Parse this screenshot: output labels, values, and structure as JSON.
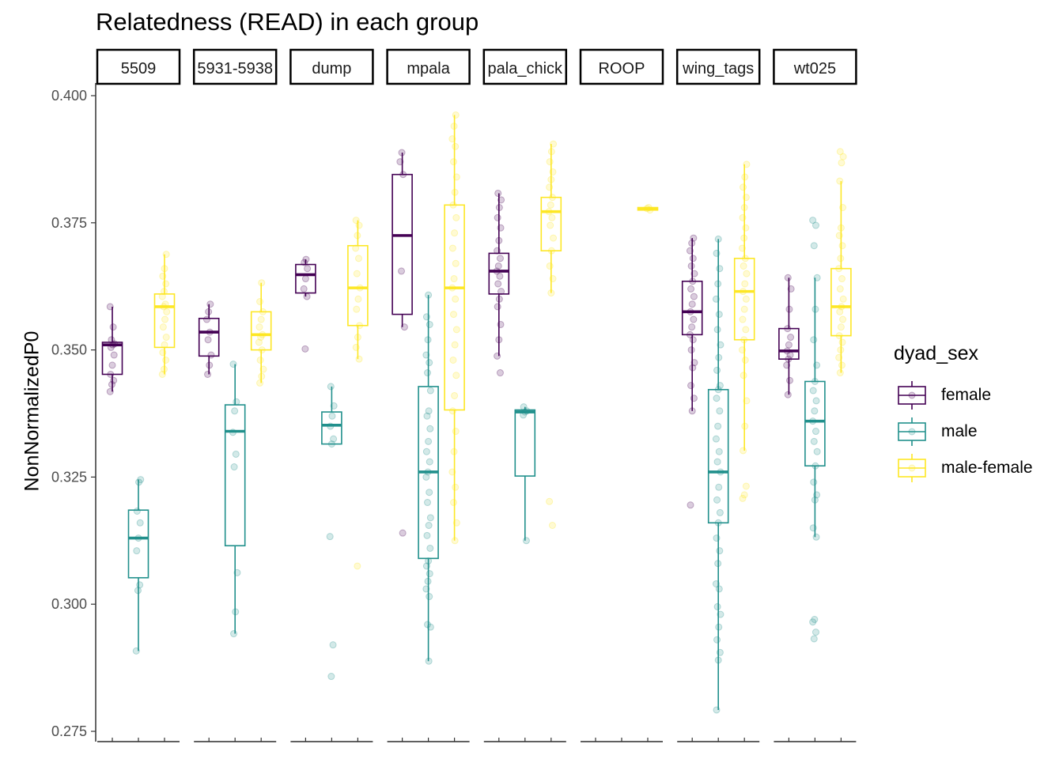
{
  "chart_data": {
    "type": "boxplot",
    "title": "Relatedness (READ) in each group",
    "xlabel": "",
    "ylabel": "NonNormalizedP0",
    "ylim": [
      0.275,
      0.4
    ],
    "yticks": [
      0.275,
      0.3,
      0.325,
      0.35,
      0.375,
      0.4
    ],
    "ytick_labels": [
      "0.275",
      "0.300",
      "0.325",
      "0.350",
      "0.375",
      "0.400"
    ],
    "legend": {
      "title": "dyad_sex",
      "position": "right",
      "entries": [
        {
          "label": "female",
          "color": "#440154"
        },
        {
          "label": "male",
          "color": "#21908C"
        },
        {
          "label": "male-female",
          "color": "#FDE725"
        }
      ]
    },
    "panels": [
      {
        "label": "5509",
        "boxes": [
          {
            "group": "female",
            "q1": 0.3452,
            "median": 0.351,
            "q3": 0.3515,
            "whisker_low": 0.3418,
            "whisker_high": 0.3585,
            "points": [
              0.3418,
              0.3432,
              0.344,
              0.3452,
              0.347,
              0.349,
              0.3505,
              0.351,
              0.3512,
              0.352,
              0.3545,
              0.3585
            ]
          },
          {
            "group": "male",
            "q1": 0.3052,
            "median": 0.313,
            "q3": 0.3185,
            "whisker_low": 0.2908,
            "whisker_high": 0.3245,
            "points": [
              0.2908,
              0.3027,
              0.3038,
              0.3105,
              0.313,
              0.316,
              0.3183,
              0.324,
              0.3245
            ]
          },
          {
            "group": "male-female",
            "q1": 0.3505,
            "median": 0.3585,
            "q3": 0.361,
            "whisker_low": 0.3452,
            "whisker_high": 0.3688,
            "points": [
              0.3452,
              0.3462,
              0.348,
              0.3495,
              0.351,
              0.3525,
              0.3545,
              0.356,
              0.3575,
              0.3585,
              0.359,
              0.3605,
              0.3615,
              0.363,
              0.3645,
              0.366,
              0.3688
            ]
          }
        ]
      },
      {
        "label": "5931-5938",
        "boxes": [
          {
            "group": "female",
            "q1": 0.3488,
            "median": 0.3535,
            "q3": 0.3562,
            "whisker_low": 0.3452,
            "whisker_high": 0.359,
            "points": [
              0.3452,
              0.347,
              0.349,
              0.352,
              0.3535,
              0.356,
              0.3575,
              0.359
            ]
          },
          {
            "group": "male",
            "q1": 0.3115,
            "median": 0.334,
            "q3": 0.3392,
            "whisker_low": 0.2942,
            "whisker_high": 0.3472,
            "points": [
              0.2942,
              0.2985,
              0.3062,
              0.327,
              0.3295,
              0.3338,
              0.338,
              0.3398,
              0.3472
            ]
          },
          {
            "group": "male-female",
            "q1": 0.35,
            "median": 0.353,
            "q3": 0.3575,
            "whisker_low": 0.3435,
            "whisker_high": 0.3632,
            "points": [
              0.3435,
              0.3448,
              0.3462,
              0.348,
              0.35,
              0.3515,
              0.3525,
              0.353,
              0.3545,
              0.356,
              0.3575,
              0.3595,
              0.3632
            ]
          }
        ]
      },
      {
        "label": "dump",
        "boxes": [
          {
            "group": "female",
            "q1": 0.3612,
            "median": 0.3648,
            "q3": 0.3668,
            "whisker_low": 0.3605,
            "whisker_high": 0.3678,
            "points": [
              0.3502,
              0.3605,
              0.362,
              0.364,
              0.366,
              0.3672,
              0.3678
            ]
          },
          {
            "group": "male",
            "q1": 0.3315,
            "median": 0.3352,
            "q3": 0.3378,
            "whisker_low": 0.3315,
            "whisker_high": 0.3428,
            "points": [
              0.2858,
              0.292,
              0.3133,
              0.3315,
              0.3325,
              0.335,
              0.337,
              0.339,
              0.3428
            ]
          },
          {
            "group": "male-female",
            "q1": 0.3548,
            "median": 0.3622,
            "q3": 0.3705,
            "whisker_low": 0.3482,
            "whisker_high": 0.3755,
            "points": [
              0.3075,
              0.3482,
              0.3505,
              0.3525,
              0.3548,
              0.358,
              0.36,
              0.3622,
              0.365,
              0.368,
              0.37,
              0.3725,
              0.3745,
              0.3755
            ]
          }
        ]
      },
      {
        "label": "mpala",
        "boxes": [
          {
            "group": "female",
            "q1": 0.357,
            "median": 0.3725,
            "q3": 0.3845,
            "whisker_low": 0.3545,
            "whisker_high": 0.3888,
            "points": [
              0.314,
              0.3545,
              0.3655,
              0.3845,
              0.387,
              0.3888
            ]
          },
          {
            "group": "male",
            "q1": 0.309,
            "median": 0.326,
            "q3": 0.3428,
            "whisker_low": 0.2888,
            "whisker_high": 0.3608,
            "points": [
              0.2888,
              0.2955,
              0.296,
              0.3015,
              0.303,
              0.3045,
              0.306,
              0.3075,
              0.3085,
              0.311,
              0.3135,
              0.3155,
              0.317,
              0.32,
              0.322,
              0.325,
              0.326,
              0.328,
              0.33,
              0.332,
              0.3345,
              0.337,
              0.338,
              0.342,
              0.3455,
              0.3475,
              0.349,
              0.352,
              0.355,
              0.3565,
              0.3608
            ]
          },
          {
            "group": "male-female",
            "q1": 0.3382,
            "median": 0.3622,
            "q3": 0.3785,
            "whisker_low": 0.3125,
            "whisker_high": 0.3962,
            "points": [
              0.3125,
              0.316,
              0.32,
              0.323,
              0.326,
              0.33,
              0.334,
              0.338,
              0.341,
              0.345,
              0.348,
              0.351,
              0.354,
              0.357,
              0.36,
              0.3622,
              0.364,
              0.367,
              0.37,
              0.373,
              0.376,
              0.3785,
              0.381,
              0.384,
              0.387,
              0.39,
              0.3915,
              0.394,
              0.3962
            ]
          }
        ]
      },
      {
        "label": "pala_chick",
        "boxes": [
          {
            "group": "female",
            "q1": 0.361,
            "median": 0.3655,
            "q3": 0.369,
            "whisker_low": 0.3488,
            "whisker_high": 0.3808,
            "points": [
              0.3455,
              0.3488,
              0.352,
              0.355,
              0.3585,
              0.36,
              0.3615,
              0.363,
              0.3645,
              0.3655,
              0.3665,
              0.368,
              0.3695,
              0.3715,
              0.374,
              0.376,
              0.378,
              0.3795,
              0.3808
            ]
          },
          {
            "group": "male",
            "q1": 0.3252,
            "median": 0.3378,
            "q3": 0.3382,
            "whisker_low": 0.3125,
            "whisker_high": 0.3388,
            "points": [
              0.3125,
              0.3372,
              0.3378,
              0.338,
              0.3388
            ]
          },
          {
            "group": "male-female",
            "q1": 0.3695,
            "median": 0.3772,
            "q3": 0.38,
            "whisker_low": 0.3612,
            "whisker_high": 0.3905,
            "points": [
              0.3155,
              0.3202,
              0.3612,
              0.364,
              0.3665,
              0.3695,
              0.372,
              0.3745,
              0.376,
              0.3772,
              0.3785,
              0.38,
              0.382,
              0.3835,
              0.385,
              0.387,
              0.389,
              0.3905
            ]
          }
        ]
      },
      {
        "label": "ROOP",
        "boxes": [
          {
            "group": "male-female",
            "q1": 0.3775,
            "median": 0.3778,
            "q3": 0.378,
            "whisker_low": 0.3775,
            "whisker_high": 0.378,
            "points": [
              0.3775,
              0.3778,
              0.378
            ]
          }
        ]
      },
      {
        "label": "wing_tags",
        "boxes": [
          {
            "group": "female",
            "q1": 0.353,
            "median": 0.3575,
            "q3": 0.3635,
            "whisker_low": 0.338,
            "whisker_high": 0.372,
            "points": [
              0.3195,
              0.338,
              0.3405,
              0.343,
              0.3465,
              0.3475,
              0.35,
              0.352,
              0.353,
              0.3545,
              0.356,
              0.3575,
              0.359,
              0.3605,
              0.362,
              0.3635,
              0.365,
              0.3665,
              0.368,
              0.3695,
              0.371,
              0.372
            ]
          },
          {
            "group": "male",
            "q1": 0.316,
            "median": 0.326,
            "q3": 0.3422,
            "whisker_low": 0.2792,
            "whisker_high": 0.3718,
            "points": [
              0.2792,
              0.289,
              0.2905,
              0.293,
              0.2955,
              0.298,
              0.2995,
              0.303,
              0.304,
              0.308,
              0.3105,
              0.313,
              0.316,
              0.318,
              0.3205,
              0.323,
              0.326,
              0.328,
              0.33,
              0.3325,
              0.335,
              0.338,
              0.3405,
              0.3422,
              0.343,
              0.346,
              0.3485,
              0.351,
              0.354,
              0.357,
              0.36,
              0.363,
              0.366,
              0.369,
              0.3718
            ]
          },
          {
            "group": "male-female",
            "q1": 0.352,
            "median": 0.3615,
            "q3": 0.368,
            "whisker_low": 0.3302,
            "whisker_high": 0.3865,
            "points": [
              0.3208,
              0.3215,
              0.3232,
              0.3302,
              0.335,
              0.34,
              0.345,
              0.348,
              0.35,
              0.352,
              0.354,
              0.356,
              0.358,
              0.36,
              0.3615,
              0.363,
              0.365,
              0.3665,
              0.368,
              0.37,
              0.372,
              0.374,
              0.376,
              0.378,
              0.38,
              0.382,
              0.384,
              0.3865
            ]
          }
        ]
      },
      {
        "label": "wt025",
        "boxes": [
          {
            "group": "female",
            "q1": 0.3482,
            "median": 0.3498,
            "q3": 0.3542,
            "whisker_low": 0.3412,
            "whisker_high": 0.3642,
            "points": [
              0.3412,
              0.344,
              0.347,
              0.3482,
              0.349,
              0.3498,
              0.351,
              0.3525,
              0.3542,
              0.358,
              0.362,
              0.3642
            ]
          },
          {
            "group": "male",
            "q1": 0.3272,
            "median": 0.336,
            "q3": 0.3438,
            "whisker_low": 0.3132,
            "whisker_high": 0.3642,
            "points": [
              0.2932,
              0.2945,
              0.2965,
              0.297,
              0.3132,
              0.315,
              0.3205,
              0.3215,
              0.324,
              0.3272,
              0.33,
              0.332,
              0.334,
              0.336,
              0.338,
              0.34,
              0.342,
              0.3438,
              0.347,
              0.352,
              0.358,
              0.3642,
              0.3705,
              0.3745,
              0.3755
            ]
          },
          {
            "group": "male-female",
            "q1": 0.3528,
            "median": 0.3585,
            "q3": 0.366,
            "whisker_low": 0.3455,
            "whisker_high": 0.3832,
            "points": [
              0.3455,
              0.347,
              0.3485,
              0.35,
              0.3515,
              0.3528,
              0.3545,
              0.356,
              0.3575,
              0.3585,
              0.36,
              0.362,
              0.364,
              0.366,
              0.368,
              0.3705,
              0.3725,
              0.374,
              0.378,
              0.3832,
              0.3868,
              0.388,
              0.389
            ]
          }
        ]
      }
    ]
  }
}
